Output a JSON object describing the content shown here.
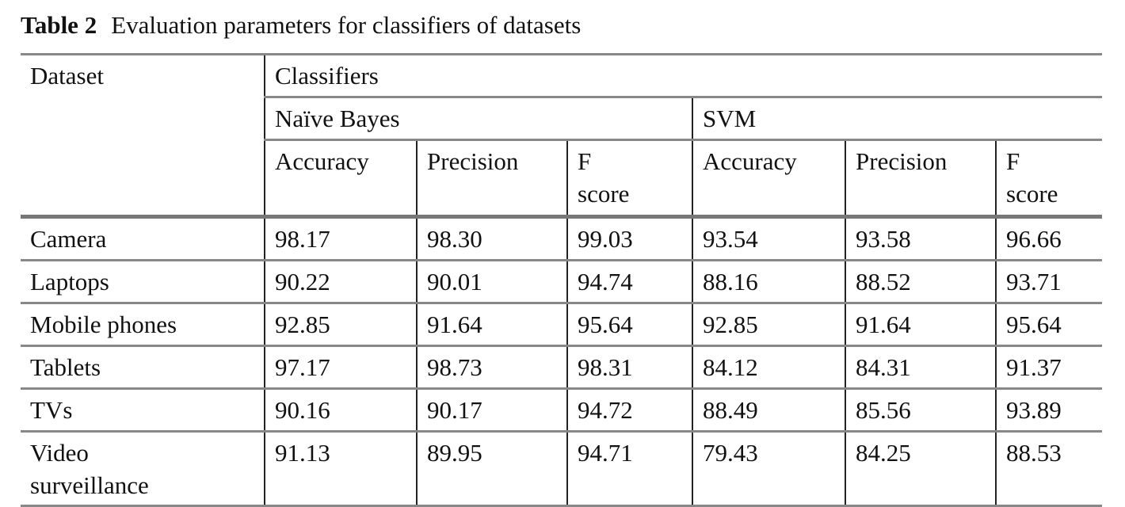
{
  "caption": {
    "label": "Table 2",
    "text": "Evaluation parameters for classifiers of datasets"
  },
  "header": {
    "dataset": "Dataset",
    "classifiers": "Classifiers",
    "groups": [
      "Naïve Bayes",
      "SVM"
    ],
    "metrics": [
      "Accuracy",
      "Precision",
      "F score",
      "Accuracy",
      "Precision",
      "F score"
    ]
  },
  "rows": [
    {
      "dataset": "Camera",
      "values": [
        "98.17",
        "98.30",
        "99.03",
        "93.54",
        "93.58",
        "96.66"
      ]
    },
    {
      "dataset": "Laptops",
      "values": [
        "90.22",
        "90.01",
        "94.74",
        "88.16",
        "88.52",
        "93.71"
      ]
    },
    {
      "dataset": "Mobile phones",
      "values": [
        "92.85",
        "91.64",
        "95.64",
        "92.85",
        "91.64",
        "95.64"
      ]
    },
    {
      "dataset": "Tablets",
      "values": [
        "97.17",
        "98.73",
        "98.31",
        "84.12",
        "84.31",
        "91.37"
      ]
    },
    {
      "dataset": "TVs",
      "values": [
        "90.16",
        "90.17",
        "94.72",
        "88.49",
        "85.56",
        "93.89"
      ]
    },
    {
      "dataset": "Video surveillance",
      "values": [
        "91.13",
        "89.95",
        "94.71",
        "79.43",
        "84.25",
        "88.53"
      ]
    }
  ]
}
